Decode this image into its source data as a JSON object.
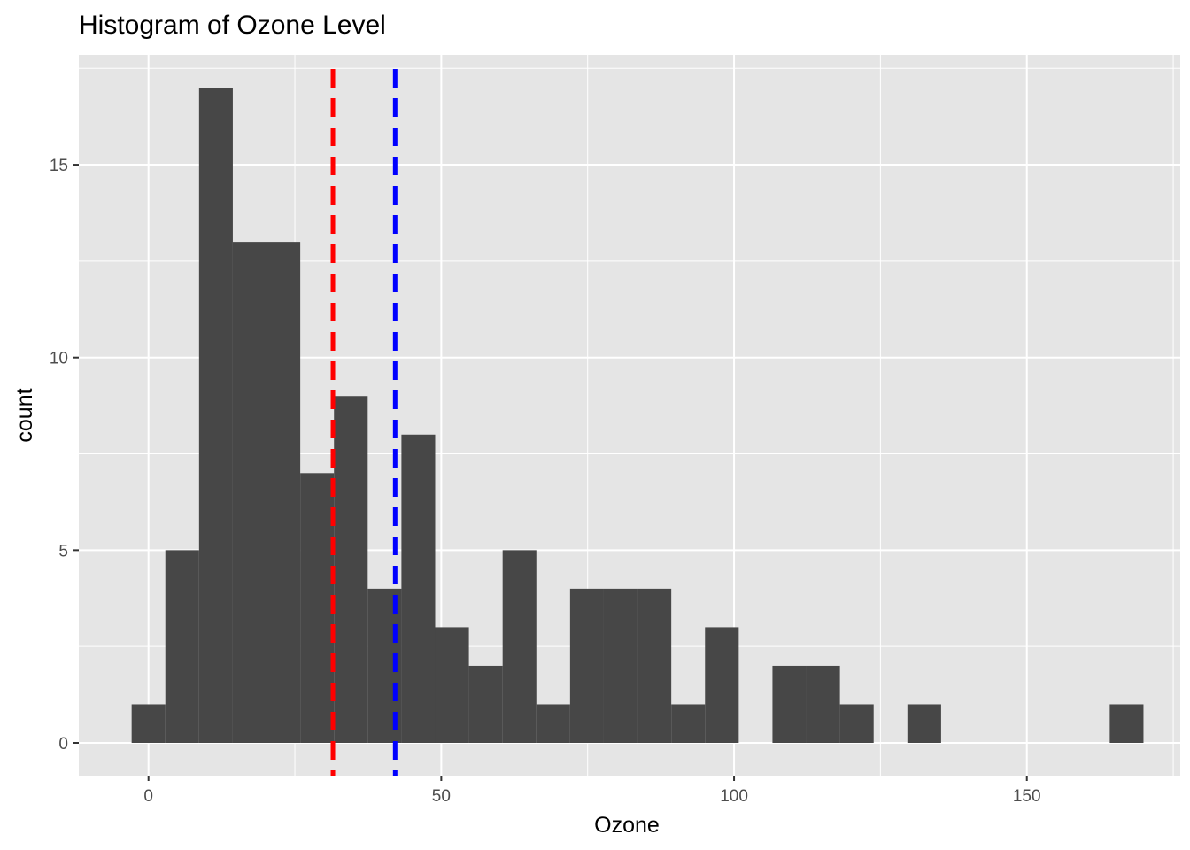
{
  "chart_data": {
    "type": "bar",
    "subtype": "histogram",
    "title": "Histogram of Ozone Level",
    "xlabel": "Ozone",
    "ylabel": "count",
    "xlim": [
      -11.9,
      176.2
    ],
    "ylim": [
      -0.85,
      17.85
    ],
    "x_ticks": [
      0,
      50,
      100,
      150
    ],
    "x_tick_labels": [
      "0",
      "50",
      "100",
      "150"
    ],
    "y_ticks": [
      0,
      5,
      10,
      15
    ],
    "y_tick_labels": [
      "0",
      "5",
      "10",
      "15"
    ],
    "grid": true,
    "bin_width": 5.76,
    "bins": [
      {
        "x_start": -2.88,
        "count": 1
      },
      {
        "x_start": 2.88,
        "count": 5
      },
      {
        "x_start": 8.64,
        "count": 17
      },
      {
        "x_start": 14.4,
        "count": 13
      },
      {
        "x_start": 20.16,
        "count": 13
      },
      {
        "x_start": 25.92,
        "count": 7
      },
      {
        "x_start": 31.68,
        "count": 9
      },
      {
        "x_start": 37.44,
        "count": 4
      },
      {
        "x_start": 43.2,
        "count": 8
      },
      {
        "x_start": 48.96,
        "count": 3
      },
      {
        "x_start": 54.72,
        "count": 2
      },
      {
        "x_start": 60.48,
        "count": 5
      },
      {
        "x_start": 66.24,
        "count": 1
      },
      {
        "x_start": 72.0,
        "count": 4
      },
      {
        "x_start": 77.76,
        "count": 4
      },
      {
        "x_start": 83.52,
        "count": 4
      },
      {
        "x_start": 89.28,
        "count": 1
      },
      {
        "x_start": 95.04,
        "count": 3
      },
      {
        "x_start": 100.8,
        "count": 0
      },
      {
        "x_start": 106.56,
        "count": 2
      },
      {
        "x_start": 112.32,
        "count": 2
      },
      {
        "x_start": 118.08,
        "count": 1
      },
      {
        "x_start": 123.84,
        "count": 0
      },
      {
        "x_start": 129.6,
        "count": 1
      },
      {
        "x_start": 135.36,
        "count": 0
      },
      {
        "x_start": 141.12,
        "count": 0
      },
      {
        "x_start": 146.88,
        "count": 0
      },
      {
        "x_start": 152.64,
        "count": 0
      },
      {
        "x_start": 158.4,
        "count": 0
      },
      {
        "x_start": 164.16,
        "count": 1
      }
    ],
    "vlines": [
      {
        "x": 31.5,
        "color": "#ff0000",
        "style": "dashed"
      },
      {
        "x": 42.13,
        "color": "#0000ff",
        "style": "dashed"
      }
    ],
    "colors": {
      "bar_fill": "#474747",
      "panel_background": "#e5e5e5",
      "grid": "#ffffff"
    }
  }
}
